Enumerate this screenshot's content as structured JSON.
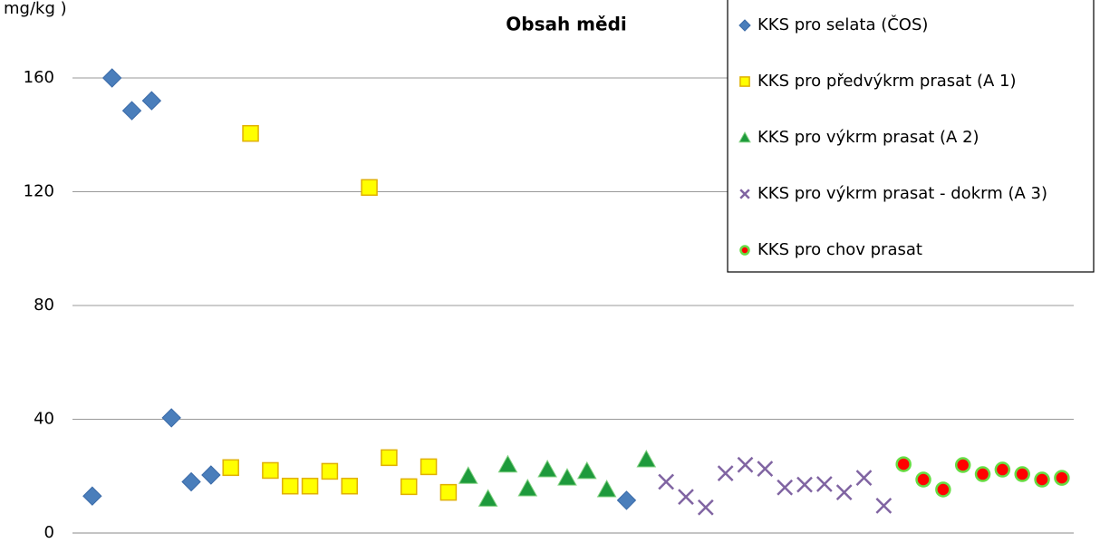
{
  "chart_data": {
    "type": "scatter",
    "title": "Obsah mědi",
    "y_label": "mg/kg )",
    "ylim": [
      0,
      160
    ],
    "yticks": [
      0,
      40,
      80,
      120,
      160
    ],
    "xlim": [
      0,
      50.6
    ],
    "grid": true,
    "legend": "top-right",
    "series": [
      {
        "name": "KKS pro selata (ČOS)",
        "color": "#4a7ebb",
        "marker": "diamond",
        "x": [
          1,
          2,
          3,
          4,
          5,
          6,
          7,
          28
        ],
        "values": [
          13,
          160,
          148.5,
          152,
          40.5,
          18,
          20.4,
          11.5
        ]
      },
      {
        "name": "KKS pro předvýkrm prasat (A 1)",
        "color": "#ffff00",
        "marker": "square",
        "x": [
          8,
          9,
          10,
          11,
          12,
          13,
          14,
          15,
          16,
          17,
          18,
          19
        ],
        "values": [
          23,
          140.5,
          22,
          16.5,
          16.5,
          21.7,
          16.5,
          121.5,
          26.5,
          16.3,
          23.3,
          14.3
        ]
      },
      {
        "name": "KKS pro výkrm prasat (A 2)",
        "color": "#1e9a3c",
        "marker": "triangle",
        "x": [
          20,
          21,
          22,
          23,
          24,
          25,
          26,
          27,
          29
        ],
        "values": [
          20,
          12,
          24,
          15.6,
          22.3,
          19.4,
          21.7,
          15.3,
          25.8
        ]
      },
      {
        "name": "KKS pro výkrm prasat - dokrm (A 3)",
        "color": "#8064a2",
        "marker": "x",
        "x": [
          30,
          31,
          32,
          33,
          34,
          35,
          36,
          37,
          38,
          39,
          40,
          41
        ],
        "values": [
          18,
          12.7,
          9,
          21,
          24,
          22.6,
          16,
          17,
          17.2,
          14.3,
          19.4,
          9.6
        ]
      },
      {
        "name": "KKS pro chov prasat",
        "color": "#ff0000",
        "marker": "circle",
        "x": [
          42,
          43,
          44,
          45,
          46,
          47,
          48,
          49,
          50
        ],
        "values": [
          24.2,
          18.8,
          15.3,
          23.9,
          20.7,
          22.3,
          20.7,
          18.8,
          19.4
        ]
      }
    ]
  }
}
